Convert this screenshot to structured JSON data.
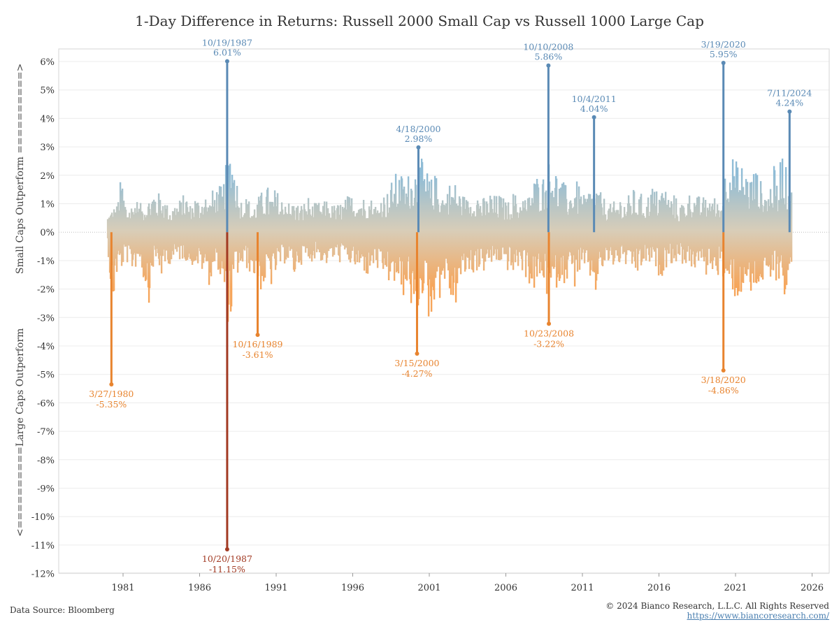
{
  "title": "1-Day Difference in Returns: Russell 2000 Small Cap vs Russell 1000 Large Cap",
  "ylabel_top": "Small Caps Outperform ==========>",
  "ylabel_bottom": "<==========Large Caps Outperform",
  "footer": {
    "source": "Data Source: Bloomberg",
    "copyright": "© 2024 Bianco Research, L.L.C. All Rights Reserved",
    "url": "https://www.biancoresearch.com/"
  },
  "colors": {
    "positive": "#8fbcd6",
    "negative": "#f6a55a",
    "highlight_positive": "#5a8ab5",
    "highlight_negative": "#e8842f",
    "extreme_negative": "#a23a23"
  },
  "chart_data": {
    "type": "bar",
    "x_ticks": [
      "1981",
      "1986",
      "1991",
      "1996",
      "2001",
      "2006",
      "2011",
      "2016",
      "2021",
      "2026"
    ],
    "x_range": [
      1979.0,
      2027.0
    ],
    "y_ticks": [
      "6%",
      "5%",
      "4%",
      "3%",
      "2%",
      "1%",
      "0%",
      "-1%",
      "-2%",
      "-3%",
      "-4%",
      "-5%",
      "-6%",
      "-7%",
      "-8%",
      "-9%",
      "-10%",
      "-11%",
      "-12%"
    ],
    "ylim": [
      -12,
      6
    ],
    "grid": true,
    "annotations": [
      {
        "date": "3/27/1980",
        "value": -5.35,
        "label": "-5.35%",
        "year": 1980.24
      },
      {
        "date": "10/19/1987",
        "value": 6.01,
        "label": "6.01%",
        "year": 1987.8
      },
      {
        "date": "10/20/1987",
        "value": -11.15,
        "label": "-11.15%",
        "year": 1987.8
      },
      {
        "date": "10/16/1989",
        "value": -3.61,
        "label": "-3.61%",
        "year": 1989.79
      },
      {
        "date": "3/15/2000",
        "value": -4.27,
        "label": "-4.27%",
        "year": 2000.2
      },
      {
        "date": "4/18/2000",
        "value": 2.98,
        "label": "2.98%",
        "year": 2000.29
      },
      {
        "date": "10/10/2008",
        "value": 5.86,
        "label": "5.86%",
        "year": 2008.78
      },
      {
        "date": "10/23/2008",
        "value": -3.22,
        "label": "-3.22%",
        "year": 2008.81
      },
      {
        "date": "10/4/2011",
        "value": 4.04,
        "label": "4.04%",
        "year": 2011.76
      },
      {
        "date": "3/18/2020",
        "value": -4.86,
        "label": "-4.86%",
        "year": 2020.21
      },
      {
        "date": "3/19/2020",
        "value": 5.95,
        "label": "5.95%",
        "year": 2020.21
      },
      {
        "date": "7/11/2024",
        "value": 4.24,
        "label": "4.24%",
        "year": 2024.53
      }
    ],
    "series": [
      {
        "values": [
          [
            1980.0,
            0.7,
            -0.5
          ],
          [
            1980.3,
            0.9,
            -3.0
          ],
          [
            1980.6,
            1.0,
            -1.6
          ],
          [
            1980.9,
            2.1,
            -1.4
          ],
          [
            1981.2,
            1.1,
            -1.0
          ],
          [
            1981.5,
            1.0,
            -1.5
          ],
          [
            1981.8,
            1.3,
            -1.3
          ],
          [
            1982.1,
            1.0,
            -1.1
          ],
          [
            1982.4,
            1.2,
            -1.9
          ],
          [
            1982.7,
            1.3,
            -2.5
          ],
          [
            1983.0,
            1.7,
            -1.2
          ],
          [
            1983.3,
            1.4,
            -1.3
          ],
          [
            1983.6,
            1.5,
            -1.8
          ],
          [
            1983.9,
            1.0,
            -1.1
          ],
          [
            1984.2,
            1.0,
            -1.2
          ],
          [
            1984.5,
            1.2,
            -1.1
          ],
          [
            1984.8,
            1.2,
            -1.0
          ],
          [
            1985.1,
            1.5,
            -1.0
          ],
          [
            1985.4,
            1.0,
            -1.3
          ],
          [
            1985.7,
            1.4,
            -1.1
          ],
          [
            1986.0,
            1.2,
            -1.5
          ],
          [
            1986.3,
            1.6,
            -1.4
          ],
          [
            1986.6,
            1.1,
            -1.9
          ],
          [
            1986.9,
            1.6,
            -1.5
          ],
          [
            1987.2,
            1.7,
            -1.3
          ],
          [
            1987.5,
            1.6,
            -2.3
          ],
          [
            1988.0,
            3.4,
            -3.6
          ],
          [
            1988.3,
            2.7,
            -1.7
          ],
          [
            1988.6,
            1.2,
            -1.5
          ],
          [
            1988.9,
            1.4,
            -1.3
          ],
          [
            1989.2,
            1.2,
            -1.4
          ],
          [
            1989.5,
            1.0,
            -1.6
          ],
          [
            1990.1,
            1.5,
            -2.2
          ],
          [
            1990.4,
            1.7,
            -1.8
          ],
          [
            1990.7,
            1.4,
            -2.0
          ],
          [
            1991.0,
            1.6,
            -1.6
          ],
          [
            1991.3,
            1.2,
            -1.3
          ],
          [
            1991.6,
            1.5,
            -1.1
          ],
          [
            1991.9,
            1.0,
            -1.2
          ],
          [
            1992.2,
            1.2,
            -1.7
          ],
          [
            1992.5,
            1.0,
            -1.2
          ],
          [
            1992.8,
            1.1,
            -1.1
          ],
          [
            1993.1,
            1.3,
            -1.2
          ],
          [
            1993.4,
            1.0,
            -1.0
          ],
          [
            1993.7,
            1.1,
            -0.9
          ],
          [
            1994.0,
            1.0,
            -1.1
          ],
          [
            1994.3,
            1.2,
            -1.2
          ],
          [
            1994.6,
            1.0,
            -1.0
          ],
          [
            1994.9,
            1.0,
            -1.1
          ],
          [
            1995.2,
            1.1,
            -1.1
          ],
          [
            1995.5,
            1.2,
            -1.0
          ],
          [
            1995.8,
            1.4,
            -1.2
          ],
          [
            1996.1,
            1.3,
            -1.3
          ],
          [
            1996.4,
            1.5,
            -1.6
          ],
          [
            1996.7,
            1.3,
            -1.4
          ],
          [
            1997.0,
            1.4,
            -1.7
          ],
          [
            1997.3,
            1.2,
            -1.3
          ],
          [
            1997.6,
            1.0,
            -1.4
          ],
          [
            1997.9,
            1.5,
            -1.9
          ],
          [
            1998.2,
            1.4,
            -1.5
          ],
          [
            1998.5,
            1.8,
            -2.3
          ],
          [
            1998.8,
            2.1,
            -1.8
          ],
          [
            1999.1,
            2.2,
            -2.4
          ],
          [
            1999.4,
            1.9,
            -2.3
          ],
          [
            1999.7,
            2.2,
            -2.0
          ],
          [
            2000.0,
            2.5,
            -3.9
          ],
          [
            2000.5,
            2.6,
            -2.2
          ],
          [
            2000.8,
            2.3,
            -2.5
          ],
          [
            2001.1,
            1.9,
            -3.8
          ],
          [
            2001.4,
            2.1,
            -2.0
          ],
          [
            2001.7,
            1.8,
            -2.4
          ],
          [
            2002.0,
            1.4,
            -1.8
          ],
          [
            2002.3,
            1.8,
            -2.3
          ],
          [
            2002.6,
            1.9,
            -3.1
          ],
          [
            2002.9,
            1.6,
            -2.1
          ],
          [
            2003.2,
            1.4,
            -1.8
          ],
          [
            2003.5,
            1.2,
            -1.5
          ],
          [
            2003.8,
            1.4,
            -1.6
          ],
          [
            2004.1,
            1.6,
            -1.4
          ],
          [
            2004.4,
            1.3,
            -1.5
          ],
          [
            2004.7,
            1.2,
            -1.4
          ],
          [
            2005.0,
            1.5,
            -1.2
          ],
          [
            2005.3,
            1.3,
            -1.3
          ],
          [
            2005.6,
            1.4,
            -1.1
          ],
          [
            2005.9,
            1.2,
            -1.4
          ],
          [
            2006.2,
            1.1,
            -1.4
          ],
          [
            2006.5,
            1.5,
            -1.7
          ],
          [
            2006.8,
            1.2,
            -1.3
          ],
          [
            2007.1,
            1.4,
            -1.5
          ],
          [
            2007.4,
            1.2,
            -1.7
          ],
          [
            2007.7,
            1.9,
            -2.2
          ],
          [
            2008.0,
            2.1,
            -2.1
          ],
          [
            2008.3,
            2.0,
            -1.8
          ],
          [
            2008.6,
            2.2,
            -2.2
          ],
          [
            2009.0,
            2.9,
            -2.8
          ],
          [
            2009.3,
            2.3,
            -2.0
          ],
          [
            2009.6,
            1.9,
            -1.8
          ],
          [
            2009.9,
            1.7,
            -1.8
          ],
          [
            2010.2,
            1.6,
            -1.6
          ],
          [
            2010.5,
            1.9,
            -2.0
          ],
          [
            2010.8,
            1.7,
            -1.5
          ],
          [
            2011.1,
            1.3,
            -1.6
          ],
          [
            2011.4,
            1.6,
            -1.6
          ],
          [
            2011.9,
            1.8,
            -2.3
          ],
          [
            2012.2,
            1.4,
            -1.5
          ],
          [
            2012.5,
            1.2,
            -1.3
          ],
          [
            2012.8,
            1.0,
            -1.2
          ],
          [
            2013.1,
            1.1,
            -1.3
          ],
          [
            2013.4,
            1.4,
            -1.2
          ],
          [
            2013.7,
            1.2,
            -1.1
          ],
          [
            2014.0,
            1.3,
            -1.4
          ],
          [
            2014.3,
            1.6,
            -1.5
          ],
          [
            2014.6,
            1.3,
            -1.6
          ],
          [
            2014.9,
            1.4,
            -1.3
          ],
          [
            2015.2,
            1.2,
            -1.2
          ],
          [
            2015.5,
            1.8,
            -1.2
          ],
          [
            2015.8,
            1.5,
            -1.4
          ],
          [
            2016.1,
            1.7,
            -1.7
          ],
          [
            2016.4,
            1.7,
            -1.3
          ],
          [
            2016.7,
            1.3,
            -1.1
          ],
          [
            2017.0,
            1.4,
            -1.2
          ],
          [
            2017.3,
            1.0,
            -1.0
          ],
          [
            2017.6,
            1.2,
            -1.2
          ],
          [
            2017.9,
            1.4,
            -1.1
          ],
          [
            2018.2,
            1.5,
            -1.5
          ],
          [
            2018.5,
            1.3,
            -1.2
          ],
          [
            2018.8,
            1.3,
            -1.3
          ],
          [
            2019.1,
            1.2,
            -1.6
          ],
          [
            2019.4,
            1.5,
            -1.2
          ],
          [
            2019.7,
            1.2,
            -1.8
          ],
          [
            2020.0,
            1.0,
            -1.3
          ],
          [
            2020.5,
            3.0,
            -2.6
          ],
          [
            2020.8,
            2.8,
            -2.1
          ],
          [
            2021.1,
            2.5,
            -2.7
          ],
          [
            2021.4,
            2.5,
            -2.2
          ],
          [
            2021.7,
            2.3,
            -2.0
          ],
          [
            2022.0,
            2.1,
            -2.6
          ],
          [
            2022.3,
            2.4,
            -2.1
          ],
          [
            2022.6,
            1.9,
            -2.0
          ],
          [
            2022.9,
            1.6,
            -1.9
          ],
          [
            2023.2,
            1.6,
            -2.4
          ],
          [
            2023.5,
            2.4,
            -1.6
          ],
          [
            2023.8,
            1.6,
            -1.8
          ],
          [
            2024.0,
            3.4,
            -1.5
          ],
          [
            2024.2,
            2.5,
            -2.5
          ],
          [
            2024.7,
            1.5,
            -1.4
          ]
        ]
      }
    ]
  }
}
